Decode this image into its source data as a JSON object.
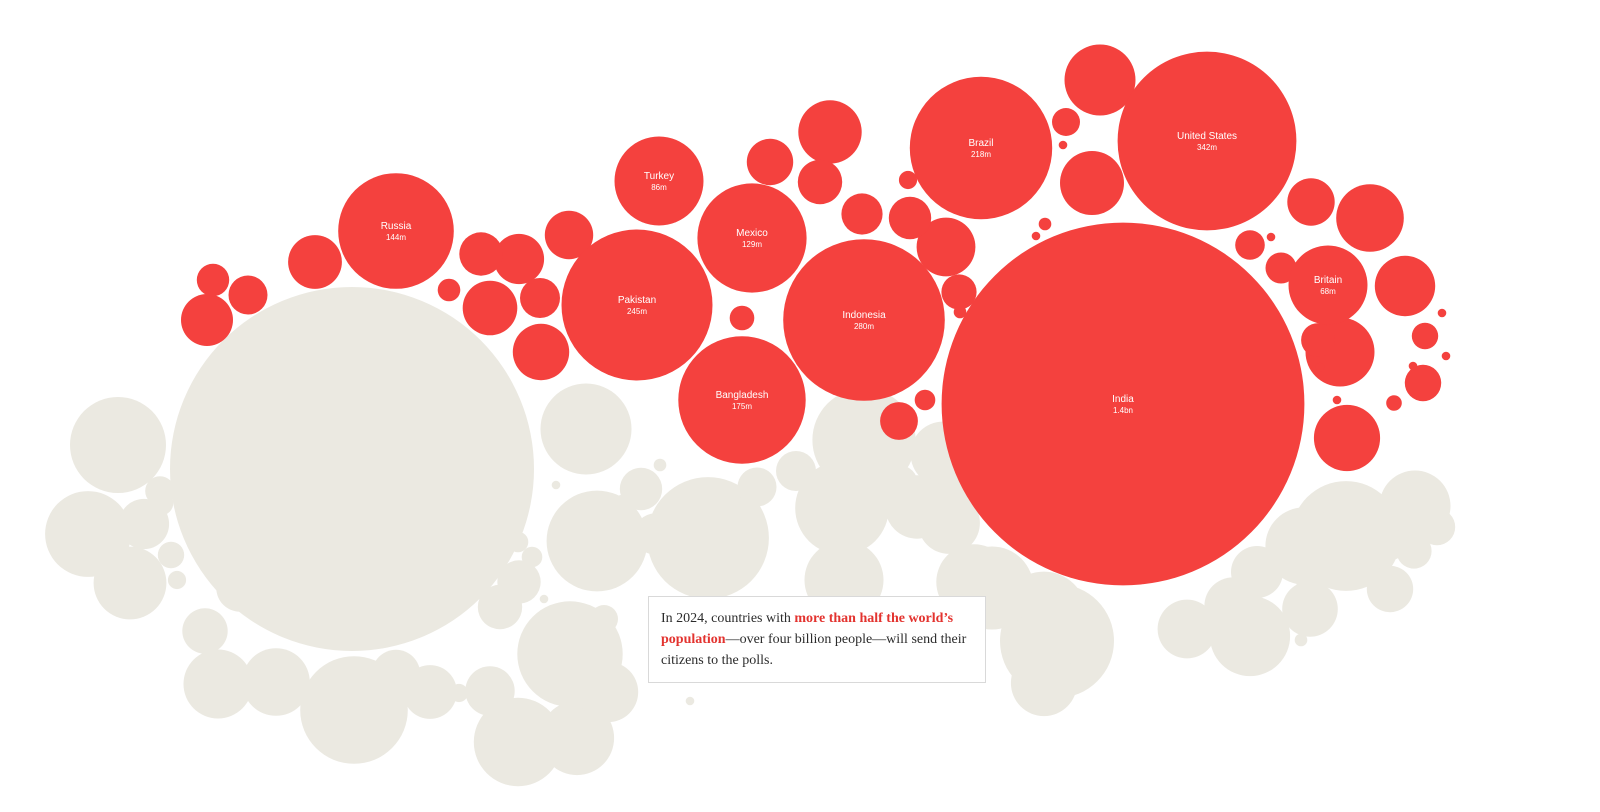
{
  "colors": {
    "voting": "#f4413e",
    "not_voting": "#ebe9e1",
    "highlight_text": "#e3332f",
    "body_text": "#2b2b2b"
  },
  "annotation": {
    "prefix": "In 2024, countries with ",
    "highlight": "more than half the world’s population",
    "suffix": "—over four billion people—will send their citizens to the polls."
  },
  "chart_data": {
    "type": "bubble",
    "title": "",
    "series": [
      {
        "name": "",
        "status": "voting"
      },
      {
        "name": "",
        "status": "not voting"
      }
    ],
    "labeled_countries": [
      {
        "name": "India",
        "value_label": "1.4bn",
        "value_millions": 1400,
        "status": "voting"
      },
      {
        "name": "United States",
        "value_label": "342m",
        "value_millions": 342,
        "status": "voting"
      },
      {
        "name": "Indonesia",
        "value_label": "280m",
        "value_millions": 280,
        "status": "voting"
      },
      {
        "name": "Pakistan",
        "value_label": "245m",
        "value_millions": 245,
        "status": "voting"
      },
      {
        "name": "Brazil",
        "value_label": "218m",
        "value_millions": 218,
        "status": "voting"
      },
      {
        "name": "Bangladesh",
        "value_label": "175m",
        "value_millions": 175,
        "status": "voting"
      },
      {
        "name": "Russia",
        "value_label": "144m",
        "value_millions": 144,
        "status": "voting"
      },
      {
        "name": "Mexico",
        "value_label": "129m",
        "value_millions": 129,
        "status": "voting"
      },
      {
        "name": "Turkey",
        "value_label": "86m",
        "value_millions": 86,
        "status": "voting"
      },
      {
        "name": "Britain",
        "value_label": "68m",
        "value_millions": 68,
        "status": "voting"
      }
    ],
    "unlabeled_voting_populations_millions": [
      55,
      52,
      50,
      48,
      45,
      44,
      40,
      38,
      35,
      33,
      32,
      30,
      28,
      26,
      25,
      24,
      22,
      21,
      20,
      19,
      18,
      17,
      16,
      15,
      14,
      13,
      12,
      11,
      10,
      9,
      8,
      7,
      6,
      5,
      4,
      3,
      2,
      2,
      1,
      1,
      1,
      1,
      1,
      1,
      1,
      1
    ],
    "not_voting_populations_millions": [
      1410,
      160,
      140,
      130,
      125,
      120,
      115,
      110,
      100,
      95,
      90,
      85,
      80,
      78,
      75,
      70,
      68,
      65,
      62,
      60,
      58,
      55,
      52,
      50,
      48,
      46,
      44,
      42,
      40,
      38,
      36,
      34,
      32,
      30,
      28,
      27,
      26,
      25,
      24,
      23,
      22,
      21,
      20,
      19,
      18,
      17,
      16,
      15,
      14,
      13,
      12,
      11,
      10,
      9,
      8,
      7,
      6,
      5,
      5,
      4,
      4,
      3,
      3,
      2,
      2,
      2,
      1,
      1,
      1,
      1,
      1,
      1
    ]
  }
}
